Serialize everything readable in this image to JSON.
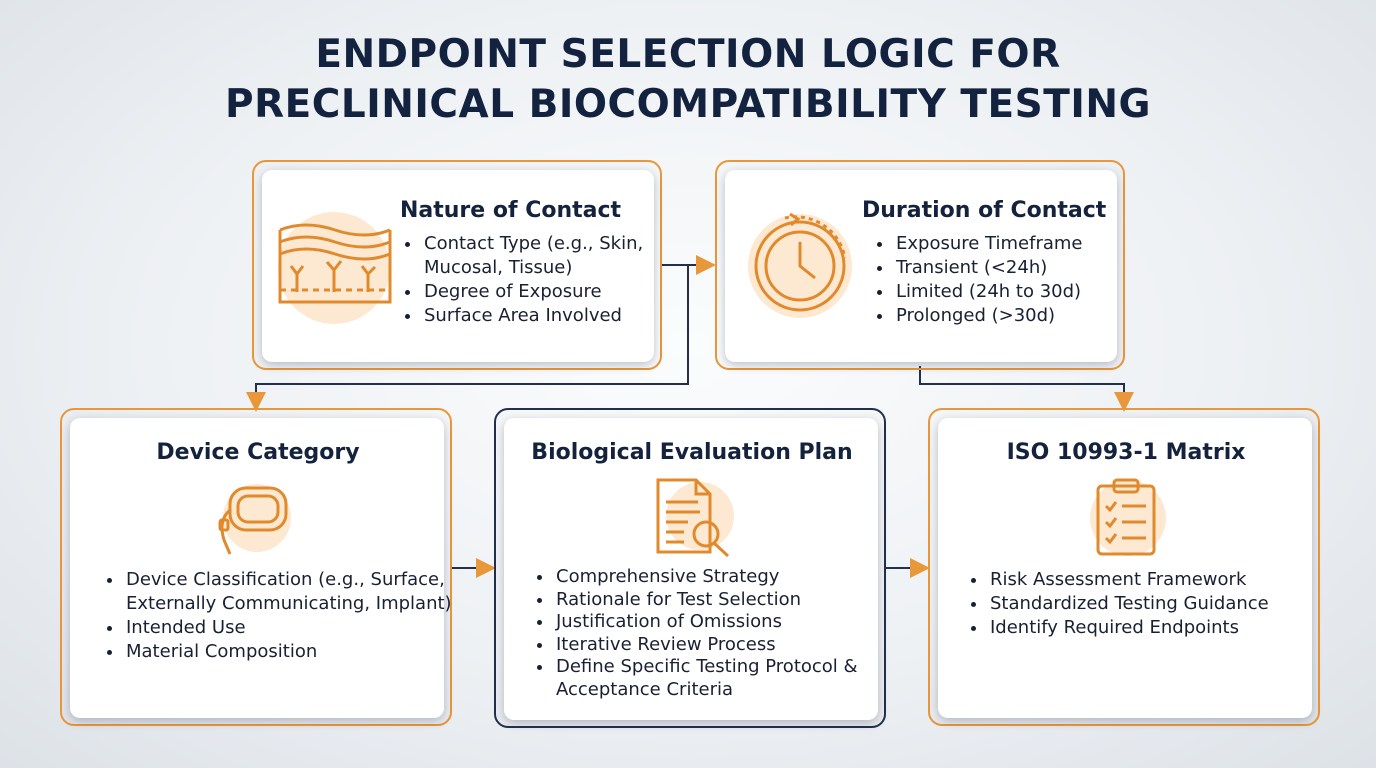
{
  "header": {
    "title_lines": [
      "ENDPOINT SELECTION LOGIC FOR",
      "PRECLINICAL BIOCOMPATIBILITY TESTING"
    ]
  },
  "nodes": [
    {
      "title": "Nature of Contact",
      "bullets": [
        "Contact Type (e.g., Skin, Mucosal, Tissue)",
        "Degree of Exposure",
        "Surface Area Involved"
      ]
    },
    {
      "title": "Duration of Contact",
      "bullets": [
        "Exposure Timeframe",
        "Transient (<24h)",
        "Limited (24h to 30d)",
        "Prolonged (>30d)"
      ]
    },
    {
      "title": "Device Category",
      "bullets": [
        "Device Classification (e.g., Surface, Externally Communicating, Implant)",
        "Intended Use",
        "Material Composition"
      ]
    },
    {
      "title": "Biological Evaluation Plan",
      "bullets": [
        "Comprehensive Strategy",
        "Rationale for Test Selection",
        "Justification of Omissions",
        "Iterative Review Process",
        "Define Specific Testing Protocol & Acceptance Criteria"
      ]
    },
    {
      "title": "ISO 10993-1 Matrix",
      "bullets": [
        "Risk Assessment Framework",
        "Standardized Testing Guidance",
        "Identify Required Endpoints"
      ]
    }
  ]
}
